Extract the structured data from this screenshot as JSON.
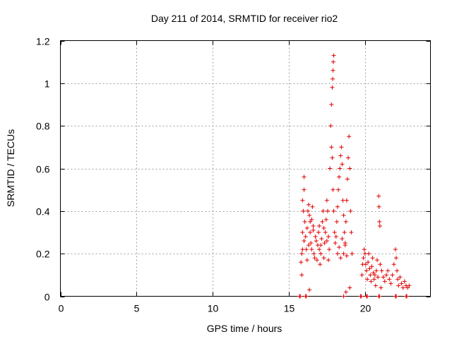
{
  "chart_data": {
    "type": "scatter",
    "title": "Day 211 of 2014, SRMTID for receiver rio2",
    "xlabel": "GPS time / hours",
    "ylabel": "SRMTID / TECUs",
    "xlim": [
      0,
      24.3
    ],
    "ylim": [
      0,
      1.2
    ],
    "xticks": [
      0,
      5,
      10,
      15,
      20
    ],
    "yticks": [
      0,
      0.2,
      0.4,
      0.6,
      0.8,
      1,
      1.2
    ],
    "xtick_labels": [
      "0",
      "5",
      "10",
      "15",
      "20"
    ],
    "ytick_labels": [
      "0",
      "0.2",
      "0.4",
      "0.6",
      "0.8",
      "1",
      "1.2"
    ],
    "grid": true,
    "marker": "+",
    "color": "#e00000",
    "series": [
      {
        "name": "SRMTID",
        "points": [
          [
            15.8,
            0.16
          ],
          [
            15.85,
            0.2
          ],
          [
            15.9,
            0.3
          ],
          [
            15.95,
            0.4
          ],
          [
            16.0,
            0.56
          ],
          [
            16.0,
            0.5
          ],
          [
            15.9,
            0.45
          ],
          [
            16.05,
            0.35
          ],
          [
            16.1,
            0.28
          ],
          [
            16.15,
            0.22
          ],
          [
            16.2,
            0.32
          ],
          [
            16.25,
            0.4
          ],
          [
            16.3,
            0.43
          ],
          [
            16.35,
            0.38
          ],
          [
            16.4,
            0.3
          ],
          [
            16.45,
            0.25
          ],
          [
            16.5,
            0.36
          ],
          [
            16.55,
            0.42
          ],
          [
            16.6,
            0.33
          ],
          [
            16.65,
            0.2
          ],
          [
            16.7,
            0.18
          ],
          [
            16.75,
            0.28
          ],
          [
            16.8,
            0.26
          ],
          [
            16.85,
            0.17
          ],
          [
            16.9,
            0.24
          ],
          [
            16.95,
            0.3
          ],
          [
            17.0,
            0.22
          ],
          [
            17.05,
            0.15
          ],
          [
            17.1,
            0.2
          ],
          [
            17.15,
            0.27
          ],
          [
            17.2,
            0.35
          ],
          [
            17.25,
            0.4
          ],
          [
            17.3,
            0.32
          ],
          [
            17.35,
            0.25
          ],
          [
            17.4,
            0.3
          ],
          [
            17.45,
            0.36
          ],
          [
            17.5,
            0.45
          ],
          [
            17.55,
            0.4
          ],
          [
            17.6,
            0.28
          ],
          [
            17.65,
            0.22
          ],
          [
            17.7,
            0.6
          ],
          [
            17.75,
            0.8
          ],
          [
            17.8,
            0.9
          ],
          [
            17.85,
            0.98
          ],
          [
            17.88,
            1.02
          ],
          [
            17.9,
            1.06
          ],
          [
            17.92,
            1.1
          ],
          [
            17.95,
            1.13
          ],
          [
            17.8,
            0.7
          ],
          [
            17.85,
            0.65
          ],
          [
            17.9,
            0.5
          ],
          [
            17.95,
            0.4
          ],
          [
            18.0,
            0.3
          ],
          [
            18.05,
            0.25
          ],
          [
            18.1,
            0.28
          ],
          [
            18.15,
            0.35
          ],
          [
            18.2,
            0.42
          ],
          [
            18.25,
            0.5
          ],
          [
            18.3,
            0.56
          ],
          [
            18.35,
            0.6
          ],
          [
            18.4,
            0.66
          ],
          [
            18.45,
            0.7
          ],
          [
            18.5,
            0.62
          ],
          [
            18.55,
            0.45
          ],
          [
            18.6,
            0.38
          ],
          [
            18.65,
            0.3
          ],
          [
            18.7,
            0.25
          ],
          [
            18.75,
            0.35
          ],
          [
            18.8,
            0.45
          ],
          [
            18.85,
            0.55
          ],
          [
            18.9,
            0.65
          ],
          [
            18.95,
            0.75
          ],
          [
            19.0,
            0.6
          ],
          [
            19.05,
            0.4
          ],
          [
            19.1,
            0.3
          ],
          [
            19.15,
            0.2
          ],
          [
            18.2,
            0.2
          ],
          [
            18.3,
            0.23
          ],
          [
            18.4,
            0.18
          ],
          [
            18.5,
            0.27
          ],
          [
            18.6,
            0.2
          ],
          [
            18.7,
            0.24
          ],
          [
            18.8,
            0.19
          ],
          [
            17.5,
            0.26
          ],
          [
            17.6,
            0.17
          ],
          [
            16.5,
            0.22
          ],
          [
            16.6,
            0.31
          ],
          [
            16.0,
            0.26
          ],
          [
            15.9,
            0.22
          ],
          [
            16.2,
            0.17
          ],
          [
            16.3,
            0.24
          ],
          [
            16.4,
            0.35
          ],
          [
            17.0,
            0.33
          ],
          [
            17.1,
            0.24
          ],
          [
            17.3,
            0.18
          ],
          [
            19.8,
            0.1
          ],
          [
            19.85,
            0.15
          ],
          [
            19.9,
            0.18
          ],
          [
            19.95,
            0.22
          ],
          [
            20.0,
            0.2
          ],
          [
            20.05,
            0.15
          ],
          [
            20.1,
            0.12
          ],
          [
            20.15,
            0.08
          ],
          [
            20.2,
            0.16
          ],
          [
            20.25,
            0.2
          ],
          [
            20.3,
            0.13
          ],
          [
            20.35,
            0.1
          ],
          [
            20.4,
            0.07
          ],
          [
            20.45,
            0.14
          ],
          [
            20.5,
            0.18
          ],
          [
            20.55,
            0.11
          ],
          [
            20.6,
            0.08
          ],
          [
            20.65,
            0.1
          ],
          [
            20.7,
            0.05
          ],
          [
            20.75,
            0.12
          ],
          [
            20.8,
            0.17
          ],
          [
            20.85,
            0.09
          ],
          [
            20.9,
            0.47
          ],
          [
            20.92,
            0.42
          ],
          [
            20.95,
            0.35
          ],
          [
            20.98,
            0.33
          ],
          [
            21.0,
            0.15
          ],
          [
            21.1,
            0.12
          ],
          [
            21.2,
            0.09
          ],
          [
            21.3,
            0.07
          ],
          [
            21.4,
            0.1
          ],
          [
            21.5,
            0.12
          ],
          [
            21.6,
            0.08
          ],
          [
            21.7,
            0.06
          ],
          [
            21.8,
            0.1
          ],
          [
            21.9,
            0.15
          ],
          [
            22.0,
            0.22
          ],
          [
            22.05,
            0.18
          ],
          [
            22.1,
            0.12
          ],
          [
            22.15,
            0.08
          ],
          [
            22.2,
            0.05
          ],
          [
            22.3,
            0.09
          ],
          [
            22.4,
            0.06
          ],
          [
            22.5,
            0.04
          ],
          [
            22.6,
            0.07
          ],
          [
            22.7,
            0.05
          ],
          [
            22.8,
            0.04
          ],
          [
            15.85,
            0.1
          ],
          [
            16.35,
            0.03
          ],
          [
            18.75,
            0.02
          ],
          [
            19.0,
            0.04
          ],
          [
            21.05,
            0.04
          ],
          [
            22.9,
            0.05
          ],
          [
            15.7,
            0.0
          ],
          [
            15.75,
            0.0
          ],
          [
            16.1,
            0.0
          ],
          [
            16.15,
            0.0
          ],
          [
            18.6,
            0.0
          ],
          [
            19.7,
            0.0
          ],
          [
            19.75,
            0.0
          ],
          [
            20.1,
            0.0
          ],
          [
            20.15,
            0.0
          ],
          [
            20.9,
            0.0
          ],
          [
            20.95,
            0.0
          ],
          [
            22.0,
            0.0
          ],
          [
            22.05,
            0.0
          ],
          [
            22.7,
            0.0
          ],
          [
            22.75,
            0.0
          ]
        ]
      }
    ]
  }
}
